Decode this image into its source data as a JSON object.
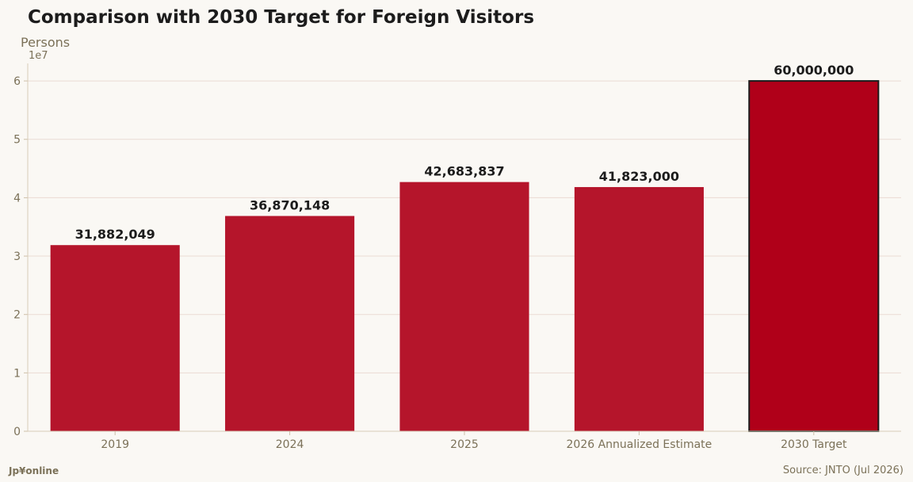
{
  "chart_data": {
    "type": "bar",
    "title": "Comparison with 2030 Target for Foreign Visitors",
    "ylabel": "Persons",
    "y_scale_label": "1e7",
    "categories": [
      "2019",
      "2024",
      "2025",
      "2026 Annualized Estimate",
      "2030 Target"
    ],
    "values": [
      31882049,
      36870148,
      42683837,
      41823000,
      60000000
    ],
    "data_labels": [
      "31,882,049",
      "36,870,148",
      "42,683,837",
      "41,823,000",
      "60,000,000"
    ],
    "y_ticks": [
      "0",
      "1",
      "2",
      "3",
      "4",
      "5",
      "6"
    ],
    "ylim": [
      0,
      63000000
    ],
    "grid": true,
    "colors": {
      "bar": "#b5152b",
      "target_bar": "#b00019",
      "target_outline": "#1c1c1c",
      "grid": "#eadbd3",
      "axis_text": "#7b7158"
    }
  },
  "footer": {
    "brand": "Jp¥online",
    "source": "Source: JNTO (Jul 2026)"
  }
}
